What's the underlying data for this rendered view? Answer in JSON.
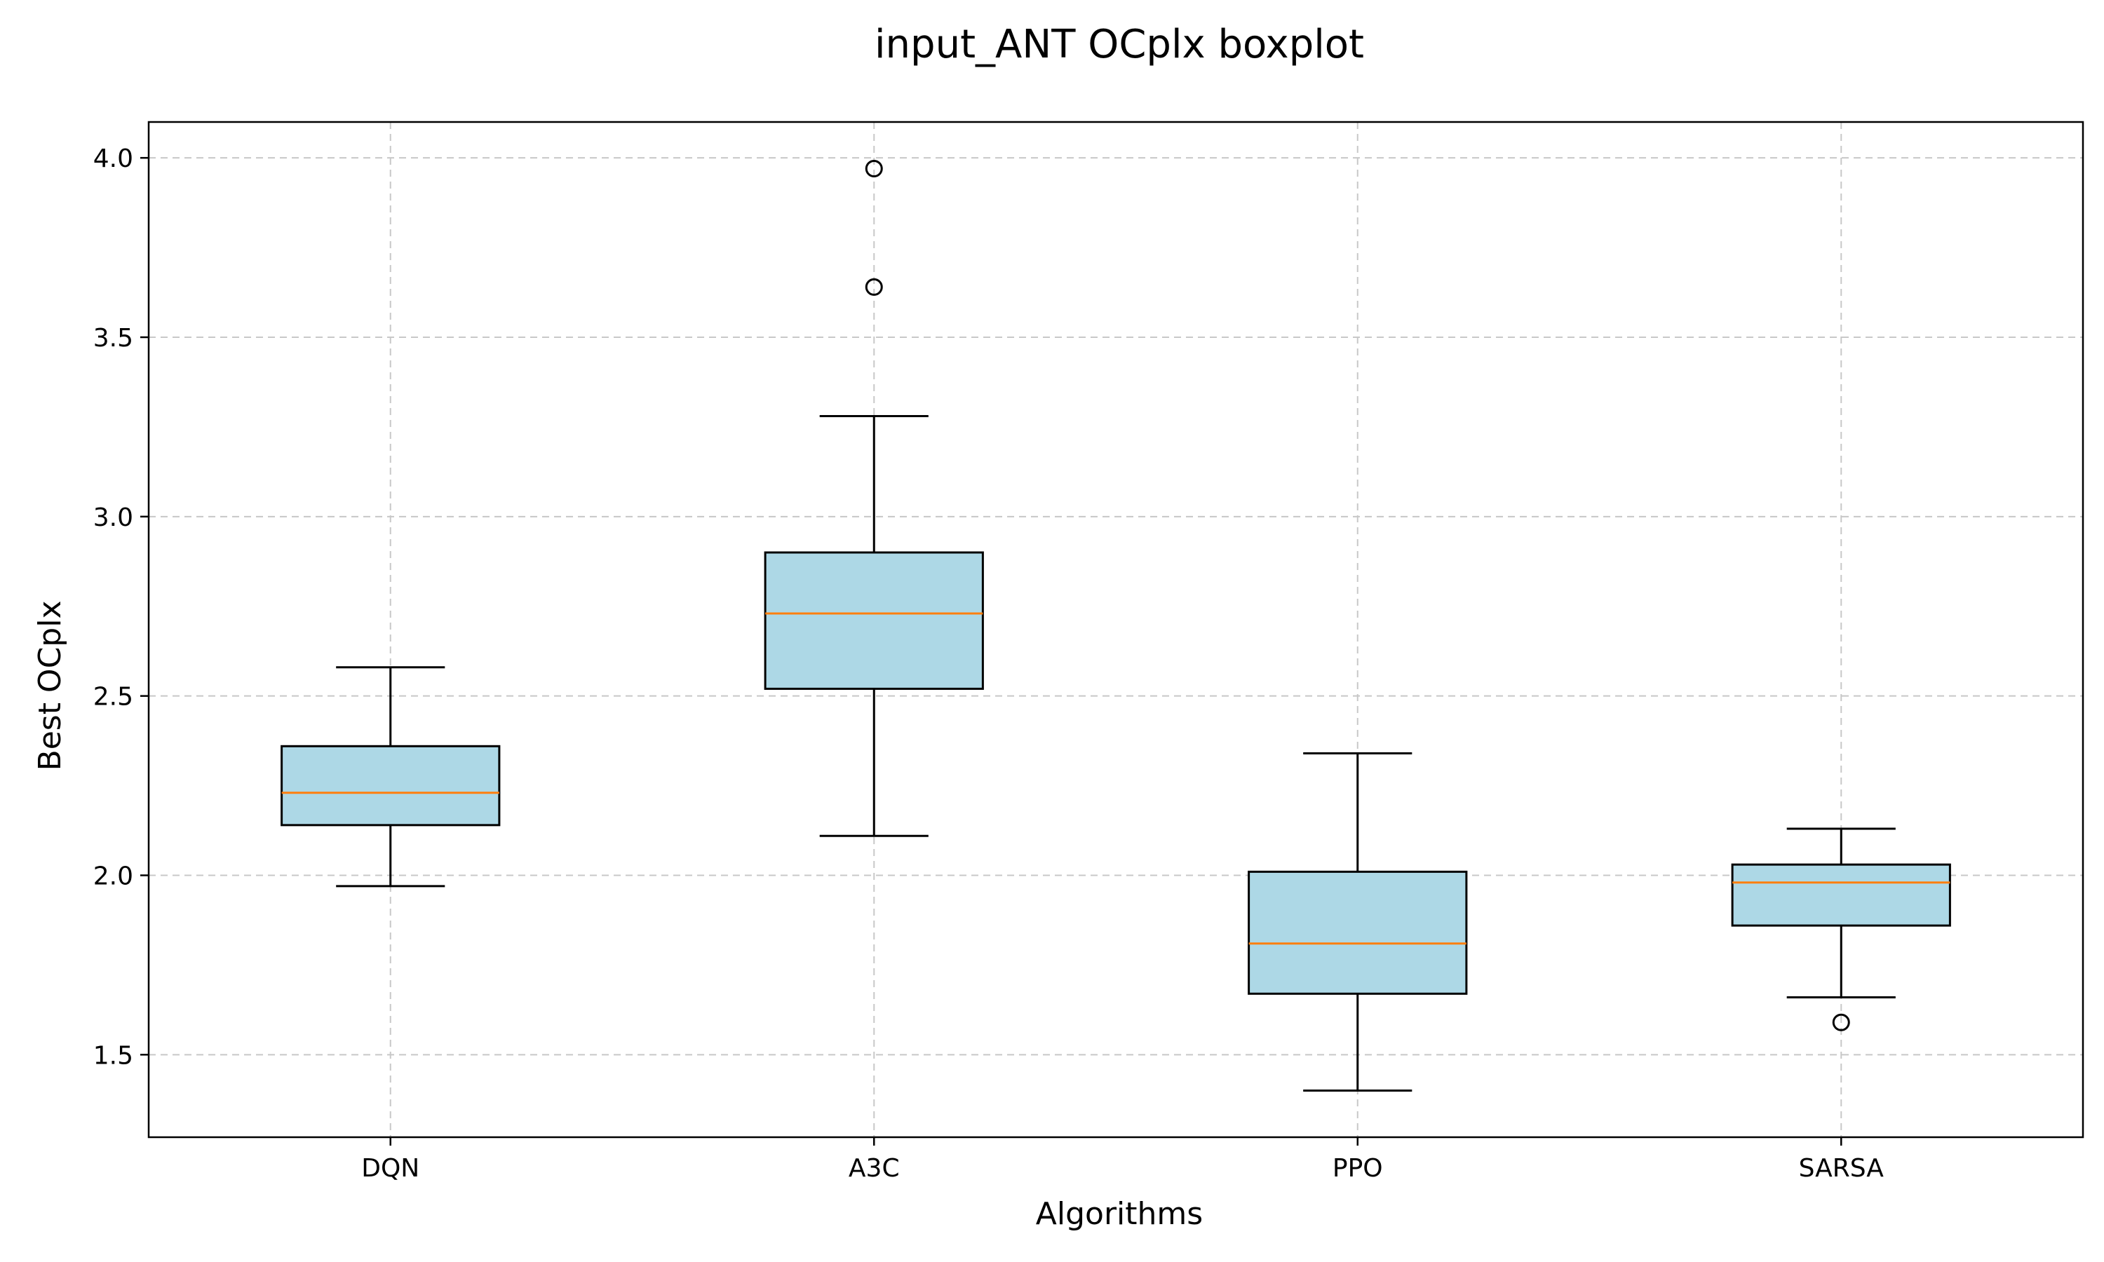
{
  "chart_data": {
    "type": "boxplot",
    "title": "input_ANT OCplx boxplot",
    "xlabel": "Algorithms",
    "ylabel": "Best OCplx",
    "ylim": [
      1.27,
      4.1
    ],
    "yticks": [
      1.5,
      2.0,
      2.5,
      3.0,
      3.5,
      4.0
    ],
    "ytick_labels": [
      "1.5",
      "2.0",
      "2.5",
      "3.0",
      "3.5",
      "4.0"
    ],
    "grid": true,
    "categories": [
      "DQN",
      "A3C",
      "PPO",
      "SARSA"
    ],
    "boxes": [
      {
        "name": "DQN",
        "whisker_low": 1.97,
        "q1": 2.14,
        "median": 2.23,
        "q3": 2.36,
        "whisker_high": 2.58,
        "outliers": []
      },
      {
        "name": "A3C",
        "whisker_low": 2.11,
        "q1": 2.52,
        "median": 2.73,
        "q3": 2.9,
        "whisker_high": 3.28,
        "outliers": [
          3.64,
          3.97
        ]
      },
      {
        "name": "PPO",
        "whisker_low": 1.4,
        "q1": 1.67,
        "median": 1.81,
        "q3": 2.01,
        "whisker_high": 2.34,
        "outliers": []
      },
      {
        "name": "SARSA",
        "whisker_low": 1.66,
        "q1": 1.86,
        "median": 1.98,
        "q3": 2.03,
        "whisker_high": 2.13,
        "outliers": [
          1.59
        ]
      }
    ],
    "colors": {
      "box_fill": "#add8e6",
      "box_edge": "#000000",
      "median": "#ff7f0e",
      "grid": "#c8c8c8"
    }
  }
}
